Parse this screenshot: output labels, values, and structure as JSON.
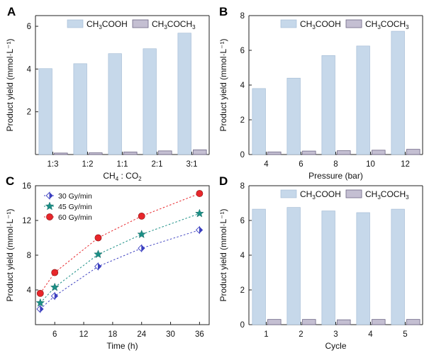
{
  "colors": {
    "acetic": "#c6d8ea",
    "acetic_edge": "#9fb8d2",
    "acetone": "#c4bfd2",
    "acetone_edge": "#6d6685",
    "series_30": "#3b3fc0",
    "series_45": "#1b8f86",
    "series_60": "#e8262b"
  },
  "panels": {
    "A": {
      "letter": "A"
    },
    "B": {
      "letter": "B"
    },
    "C": {
      "letter": "C"
    },
    "D": {
      "letter": "D"
    }
  },
  "legend_bar": {
    "acetic_main": "CH",
    "acetic_sub": "3",
    "acetic_tail": "COOH",
    "acetone_main": "CH",
    "acetone_sub": "3",
    "acetone_mid": "COCH",
    "acetone_sub2": "3"
  },
  "chart_data": [
    {
      "panel": "A",
      "type": "bar",
      "title": "",
      "xlabel_main": "CH",
      "xlabel_sub": "4",
      "xlabel_mid": " : CO",
      "xlabel_sub2": "2",
      "ylabel": "Product yield (mmol·L⁻¹)",
      "categories": [
        "1:3",
        "1:2",
        "1:1",
        "2:1",
        "3:1"
      ],
      "ylim": [
        0,
        6.5
      ],
      "yticks": [
        2,
        4,
        6
      ],
      "series": [
        {
          "name": "CH3COOH",
          "values": [
            4.02,
            4.25,
            4.72,
            4.95,
            5.68
          ]
        },
        {
          "name": "CH3COCH3",
          "values": [
            0.07,
            0.08,
            0.12,
            0.17,
            0.22
          ]
        }
      ],
      "legend": "top"
    },
    {
      "panel": "B",
      "type": "bar",
      "title": "",
      "xlabel": "Pressure (bar)",
      "ylabel": "Product yield (mmol·L⁻¹)",
      "categories": [
        "4",
        "6",
        "8",
        "10",
        "12"
      ],
      "ylim": [
        0,
        8
      ],
      "yticks": [
        0,
        2,
        4,
        6,
        8
      ],
      "series": [
        {
          "name": "CH3COOH",
          "values": [
            3.8,
            4.4,
            5.7,
            6.25,
            7.1
          ]
        },
        {
          "name": "CH3COCH3",
          "values": [
            0.15,
            0.2,
            0.22,
            0.25,
            0.3
          ]
        }
      ],
      "legend": "top"
    },
    {
      "panel": "C",
      "type": "line",
      "title": "",
      "xlabel": "Time (h)",
      "ylabel": "Product yield (mmol·L⁻¹)",
      "xlim": [
        2,
        38
      ],
      "xticks": [
        6,
        12,
        18,
        24,
        30,
        36
      ],
      "ylim": [
        0,
        16
      ],
      "yticks": [
        4,
        8,
        12,
        16
      ],
      "series": [
        {
          "name": "30 Gy/min",
          "marker": "diamond",
          "x": [
            3,
            6,
            15,
            24,
            36
          ],
          "y": [
            1.8,
            3.3,
            6.7,
            8.8,
            10.9
          ]
        },
        {
          "name": "45 Gy/min",
          "marker": "star",
          "x": [
            3,
            6,
            15,
            24,
            36
          ],
          "y": [
            2.5,
            4.3,
            8.1,
            10.4,
            12.8
          ]
        },
        {
          "name": "60 Gy/min",
          "marker": "circle",
          "x": [
            3,
            6,
            15,
            24,
            36
          ],
          "y": [
            3.6,
            6.0,
            10.0,
            12.5,
            15.1
          ]
        }
      ],
      "legend": "top-left"
    },
    {
      "panel": "D",
      "type": "bar",
      "title": "",
      "xlabel": "Cycle",
      "ylabel": "Product yield (mmol·L⁻¹)",
      "categories": [
        "1",
        "2",
        "3",
        "4",
        "5"
      ],
      "ylim": [
        0,
        8
      ],
      "yticks": [
        0,
        2,
        4,
        6,
        8
      ],
      "series": [
        {
          "name": "CH3COOH",
          "values": [
            6.65,
            6.75,
            6.55,
            6.45,
            6.65
          ]
        },
        {
          "name": "CH3COCH3",
          "values": [
            0.3,
            0.3,
            0.28,
            0.3,
            0.3
          ]
        }
      ],
      "legend": "top"
    }
  ]
}
